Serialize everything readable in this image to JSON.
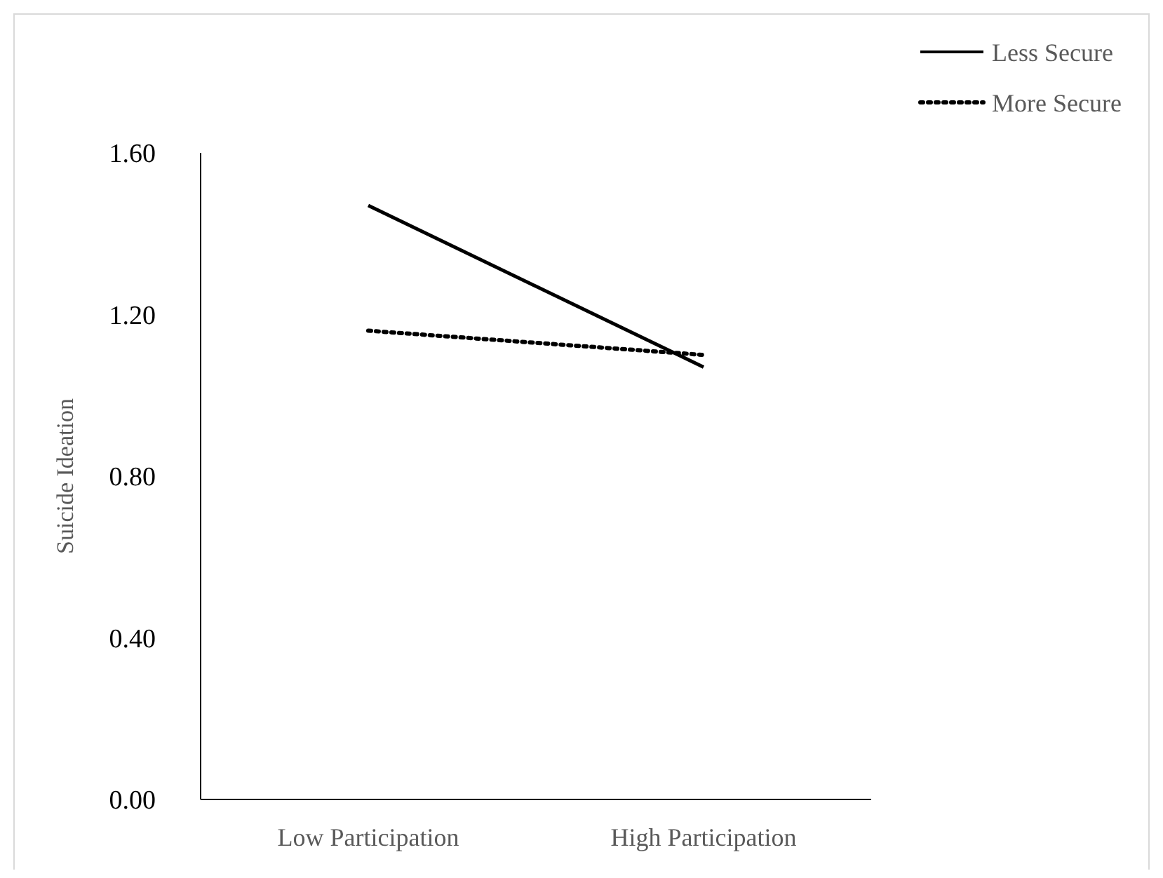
{
  "chart_data": {
    "type": "line",
    "ylabel": "Suicide Ideation",
    "categories": [
      "Low Participation",
      "High Participation"
    ],
    "series": [
      {
        "name": "Less Secure",
        "color": "#000000",
        "values": [
          1.47,
          1.07
        ],
        "line_style": "solid"
      },
      {
        "name": "More Secure",
        "color": "#000000",
        "values": [
          1.16,
          1.1
        ],
        "line_style": "dotted"
      }
    ],
    "ylim": [
      0,
      1.6
    ],
    "yticks": [
      {
        "value": 0,
        "label": "0.00"
      },
      {
        "value": 0.4,
        "label": "0.40"
      },
      {
        "value": 0.8,
        "label": "0.80"
      },
      {
        "value": 1.2,
        "label": "1.20"
      },
      {
        "value": 1.6,
        "label": "1.60"
      }
    ],
    "grid": false,
    "legend": "top right",
    "marker": "none"
  }
}
